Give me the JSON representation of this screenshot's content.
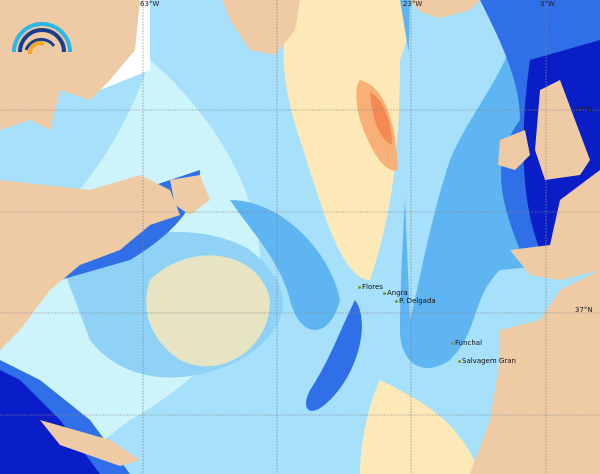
{
  "map": {
    "colors": {
      "land": "#eecba5",
      "ocean_light": "#a6e0fa",
      "ocean_mid": "#5fb4f2",
      "ocean_deep": "#2f6fe8",
      "ocean_darkest": "#0a1ec8",
      "warm_light": "#fde9b8",
      "warm_mid": "#f9b078",
      "warm_hot": "#f48a52",
      "pale_cyan": "#cdf3fb",
      "no_data": "#ffffff"
    },
    "longitude_labels": [
      "63°W",
      "23°W",
      "3°W"
    ],
    "latitude_labels": [
      "57°N",
      "37°N"
    ],
    "places": [
      "Flores",
      "Angra",
      "P. Delgada",
      "Funchal",
      "Salvagem Gran"
    ],
    "logo": "wave-arcs-logo"
  }
}
